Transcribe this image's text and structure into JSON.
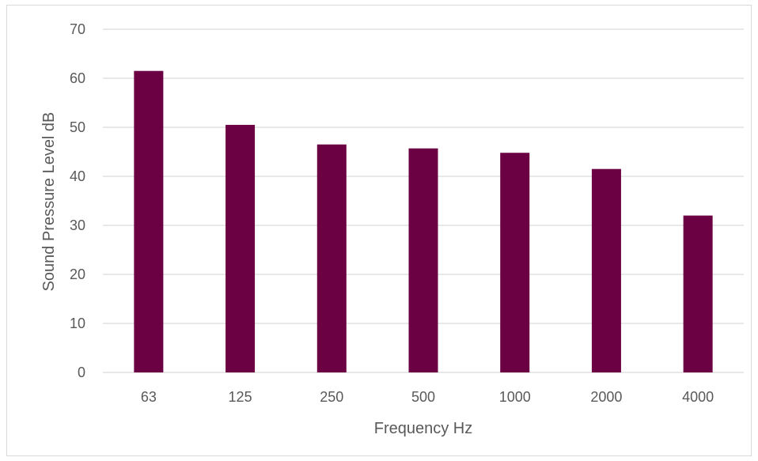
{
  "chart_data": {
    "type": "bar",
    "title": "",
    "xlabel": "Frequency Hz",
    "ylabel": "Sound Pressure Level dB",
    "categories": [
      "63",
      "125",
      "250",
      "500",
      "1000",
      "2000",
      "4000"
    ],
    "series": [
      {
        "values": [
          61.5,
          50.5,
          46.5,
          45.7,
          44.8,
          41.5,
          32
        ]
      }
    ],
    "ylim": [
      0,
      70
    ],
    "yticks": [
      0,
      10,
      20,
      30,
      40,
      50,
      60,
      70
    ],
    "grid": true,
    "legend": "none",
    "colors": {
      "bar": "#6b0043",
      "grid": "#d9d9d9",
      "text": "#595959"
    }
  }
}
